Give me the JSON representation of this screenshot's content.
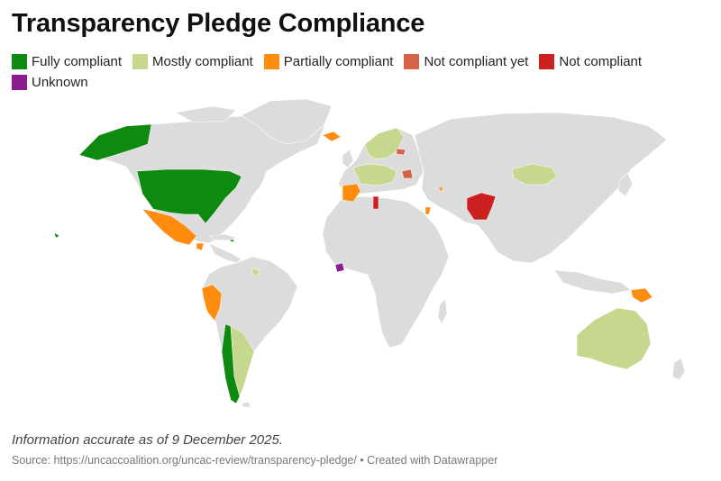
{
  "title": "Transparency Pledge Compliance",
  "legend": [
    {
      "label": "Fully compliant",
      "color": "#0f8a10"
    },
    {
      "label": "Mostly compliant",
      "color": "#c5d88e"
    },
    {
      "label": "Partially compliant",
      "color": "#ff8c0f"
    },
    {
      "label": "Not compliant yet",
      "color": "#d66248"
    },
    {
      "label": "Not compliant",
      "color": "#cc1f1f"
    },
    {
      "label": "Unknown",
      "color": "#8b1b8f"
    }
  ],
  "colors": {
    "land": "#dcdcdc",
    "border": "#ffffff"
  },
  "note": "Information accurate as of 9 December 2025.",
  "source": "Source: https://uncaccoalition.org/uncac-review/transparency-pledge/ • Created with Datawrapper"
}
